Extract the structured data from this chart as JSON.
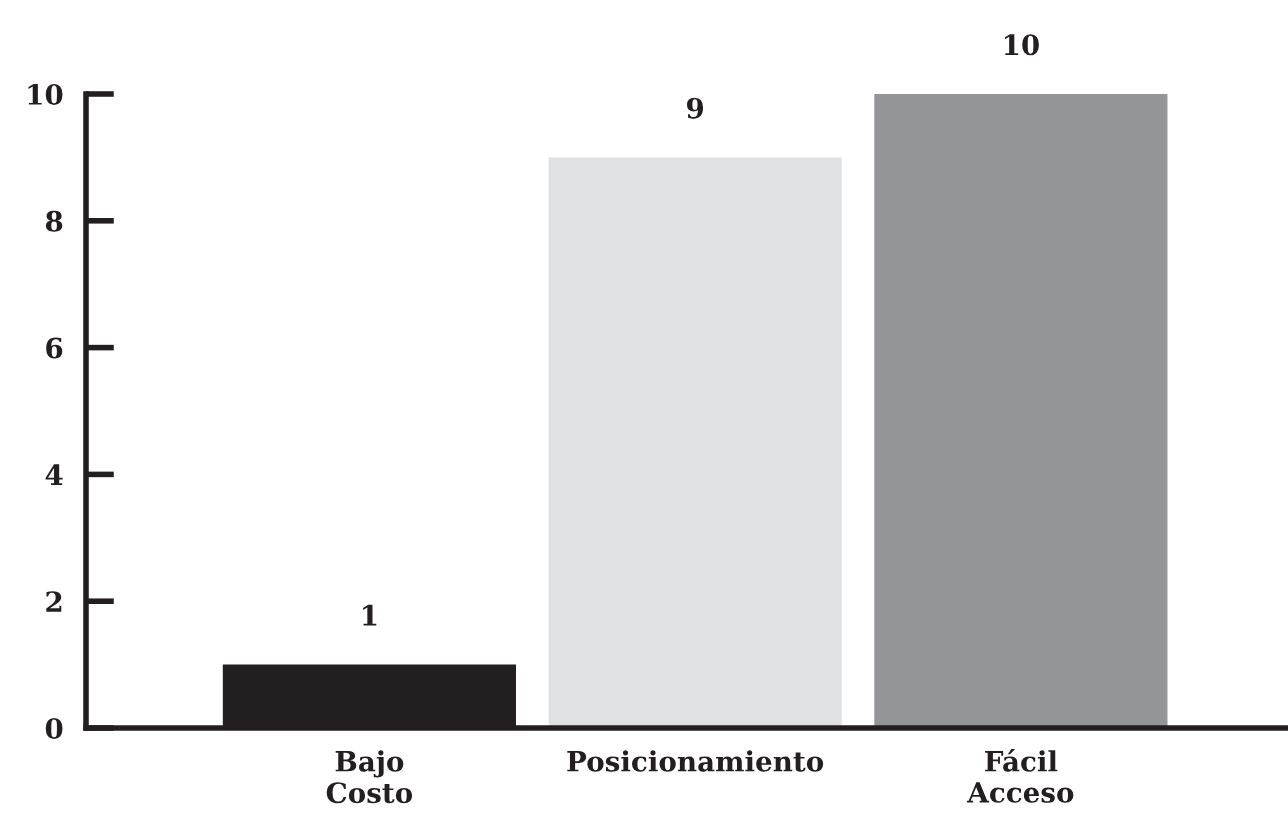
{
  "chart_data": {
    "type": "bar",
    "categories": [
      "Bajo\nCosto",
      "Posicionamiento",
      "Fácil\nAcceso"
    ],
    "values": [
      1,
      9,
      10
    ],
    "colors": [
      "#231f20",
      "#e0e1e3",
      "#939598"
    ],
    "ylim": [
      0,
      10
    ],
    "yticks": [
      0,
      2,
      4,
      6,
      8,
      10
    ],
    "data_labels": true,
    "grid": false,
    "legend": false
  }
}
